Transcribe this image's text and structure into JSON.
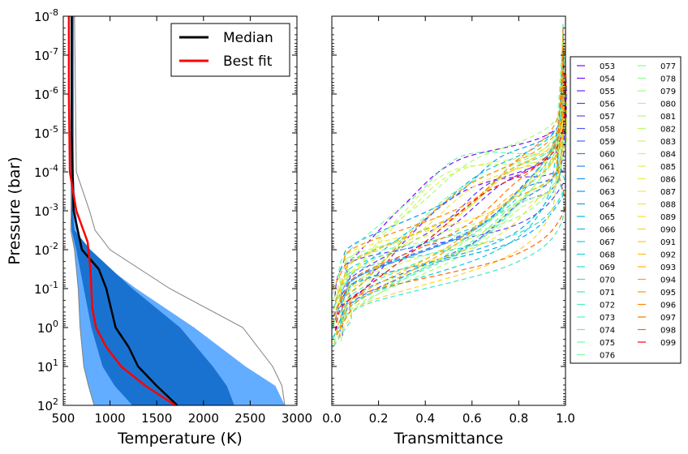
{
  "chart_data": [
    {
      "type": "line",
      "xlabel": "Temperature  (K)",
      "ylabel": "Pressure  (bar)",
      "xlim": [
        500,
        3000
      ],
      "ylim_log10": [
        2,
        -8
      ],
      "y_scale": "log, inverted (1e-8 at top, 1e2 at bottom)",
      "x_ticks": [
        "500",
        "1000",
        "1500",
        "2000",
        "2500",
        "3000"
      ],
      "y_ticks": [
        {
          "base": "10",
          "exp": "-8",
          "v": -8
        },
        {
          "base": "10",
          "exp": "-7",
          "v": -7
        },
        {
          "base": "10",
          "exp": "-6",
          "v": -6
        },
        {
          "base": "10",
          "exp": "-5",
          "v": -5
        },
        {
          "base": "10",
          "exp": "-4",
          "v": -4
        },
        {
          "base": "10",
          "exp": "-3",
          "v": -3
        },
        {
          "base": "10",
          "exp": "-2",
          "v": -2
        },
        {
          "base": "10",
          "exp": "-1",
          "v": -1
        },
        {
          "base": "10",
          "exp": "0",
          "v": 0
        },
        {
          "base": "10",
          "exp": "1",
          "v": 1
        },
        {
          "base": "10",
          "exp": "2",
          "v": 2
        }
      ],
      "legend": {
        "placement": "upper-right",
        "entries": [
          "Median",
          "Best fit"
        ]
      },
      "bands": [
        {
          "color": "#62adff",
          "left": [
            [
              600,
              -8
            ],
            [
              600,
              -4
            ],
            [
              590,
              -3
            ],
            [
              585,
              -2.5
            ],
            [
              620,
              -2
            ],
            [
              660,
              -1
            ],
            [
              680,
              0
            ],
            [
              720,
              1
            ],
            [
              770,
              1.5
            ],
            [
              830,
              2
            ]
          ],
          "right": [
            [
              610,
              -8
            ],
            [
              610,
              -4
            ],
            [
              635,
              -3
            ],
            [
              660,
              -2.5
            ],
            [
              720,
              -2
            ],
            [
              1280,
              -1
            ],
            [
              1900,
              0
            ],
            [
              2450,
              1
            ],
            [
              2770,
              1.5
            ],
            [
              2870,
              2
            ]
          ]
        },
        {
          "color": "#1a72d0",
          "left": [
            [
              580,
              -8
            ],
            [
              580,
              -4
            ],
            [
              580,
              -3
            ],
            [
              590,
              -2.5
            ],
            [
              640,
              -2
            ],
            [
              720,
              -1
            ],
            [
              800,
              0
            ],
            [
              920,
              1
            ],
            [
              1050,
              1.5
            ],
            [
              1240,
              2
            ]
          ],
          "right": [
            [
              610,
              -8
            ],
            [
              610,
              -4
            ],
            [
              600,
              -3
            ],
            [
              620,
              -2.5
            ],
            [
              790,
              -2
            ],
            [
              1240,
              -1
            ],
            [
              1750,
              0
            ],
            [
              2100,
              1
            ],
            [
              2250,
              1.5
            ],
            [
              2330,
              2
            ]
          ]
        }
      ],
      "band_edge": {
        "left": [
          [
            590,
            -8
          ],
          [
            590,
            -4
          ],
          [
            585,
            -3
          ],
          [
            580,
            -2.5
          ],
          [
            620,
            -2
          ],
          [
            660,
            -1
          ],
          [
            680,
            0
          ],
          [
            720,
            1
          ],
          [
            770,
            1.5
          ],
          [
            830,
            2
          ]
        ],
        "right": [
          [
            620,
            -8
          ],
          [
            640,
            -4
          ],
          [
            780,
            -3
          ],
          [
            840,
            -2.5
          ],
          [
            1000,
            -2
          ],
          [
            1640,
            -1
          ],
          [
            2420,
            0
          ],
          [
            2740,
            1
          ],
          [
            2840,
            1.5
          ],
          [
            2870,
            2
          ]
        ]
      },
      "series": [
        {
          "name": "Median",
          "color": "#000000",
          "points": [
            [
              590,
              -8
            ],
            [
              590,
              -5
            ],
            [
              600,
              -4
            ],
            [
              610,
              -3
            ],
            [
              700,
              -2
            ],
            [
              880,
              -1.5
            ],
            [
              960,
              -1
            ],
            [
              1060,
              0
            ],
            [
              1200,
              0.5
            ],
            [
              1300,
              1
            ],
            [
              1500,
              1.5
            ],
            [
              1720,
              2
            ]
          ]
        },
        {
          "name": "Best fit",
          "color": "#ff0000",
          "points": [
            [
              560,
              -8
            ],
            [
              560,
              -6
            ],
            [
              570,
              -4
            ],
            [
              640,
              -3
            ],
            [
              760,
              -2.2
            ],
            [
              790,
              -1.5
            ],
            [
              800,
              -1
            ],
            [
              810,
              -0.5
            ],
            [
              850,
              0
            ],
            [
              960,
              0.5
            ],
            [
              1120,
              1
            ],
            [
              1380,
              1.5
            ],
            [
              1700,
              2
            ]
          ]
        }
      ]
    },
    {
      "type": "line",
      "xlabel": "Transmittance",
      "xlim": [
        0.0,
        1.0
      ],
      "ylim_log10": [
        2,
        -8
      ],
      "x_ticks": [
        "0.0",
        "0.2",
        "0.4",
        "0.6",
        "0.8",
        "1.0"
      ],
      "line_style": "dashed",
      "legend": {
        "placement": "right, outside",
        "columns": 2,
        "entries": [
          "053",
          "054",
          "055",
          "056",
          "057",
          "058",
          "059",
          "060",
          "061",
          "062",
          "063",
          "064",
          "065",
          "066",
          "067",
          "068",
          "069",
          "070",
          "071",
          "072",
          "073",
          "074",
          "075",
          "076",
          "077",
          "078",
          "079",
          "080",
          "081",
          "082",
          "083",
          "084",
          "085",
          "086",
          "087",
          "088",
          "089",
          "090",
          "091",
          "092",
          "093",
          "094",
          "095",
          "096",
          "097",
          "098",
          "099"
        ]
      },
      "colors": [
        "#8000ff",
        "#7610ff",
        "#6a22ff",
        "#5e34fe",
        "#5446fd",
        "#4856fb",
        "#3c66f9",
        "#3276f7",
        "#2884f4",
        "#1c94f1",
        "#1296ec",
        "#06a8e9",
        "#00b5e5",
        "#08c0e0",
        "#14cadb",
        "#1ed3d6",
        "#2adbcf",
        "#34e2c9",
        "#40e8c3",
        "#4aeebc",
        "#56f2b5",
        "#60f6ae",
        "#6cf9a6",
        "#76fc9f",
        "#82fe96",
        "#8cfe8e",
        "#98ff86",
        "#a2fe7e",
        "#aefd75",
        "#b8fb6c",
        "#c4f963",
        "#cef65a",
        "#daf252",
        "#e4ee4a",
        "#f0e840",
        "#fae237",
        "#ffda2e",
        "#ffd226",
        "#ffc81d",
        "#ffbc14",
        "#ffb00c",
        "#ffa203",
        "#ff9400",
        "#ff8600",
        "#ff7600",
        "#ff6600",
        "#ff0000"
      ]
    }
  ]
}
